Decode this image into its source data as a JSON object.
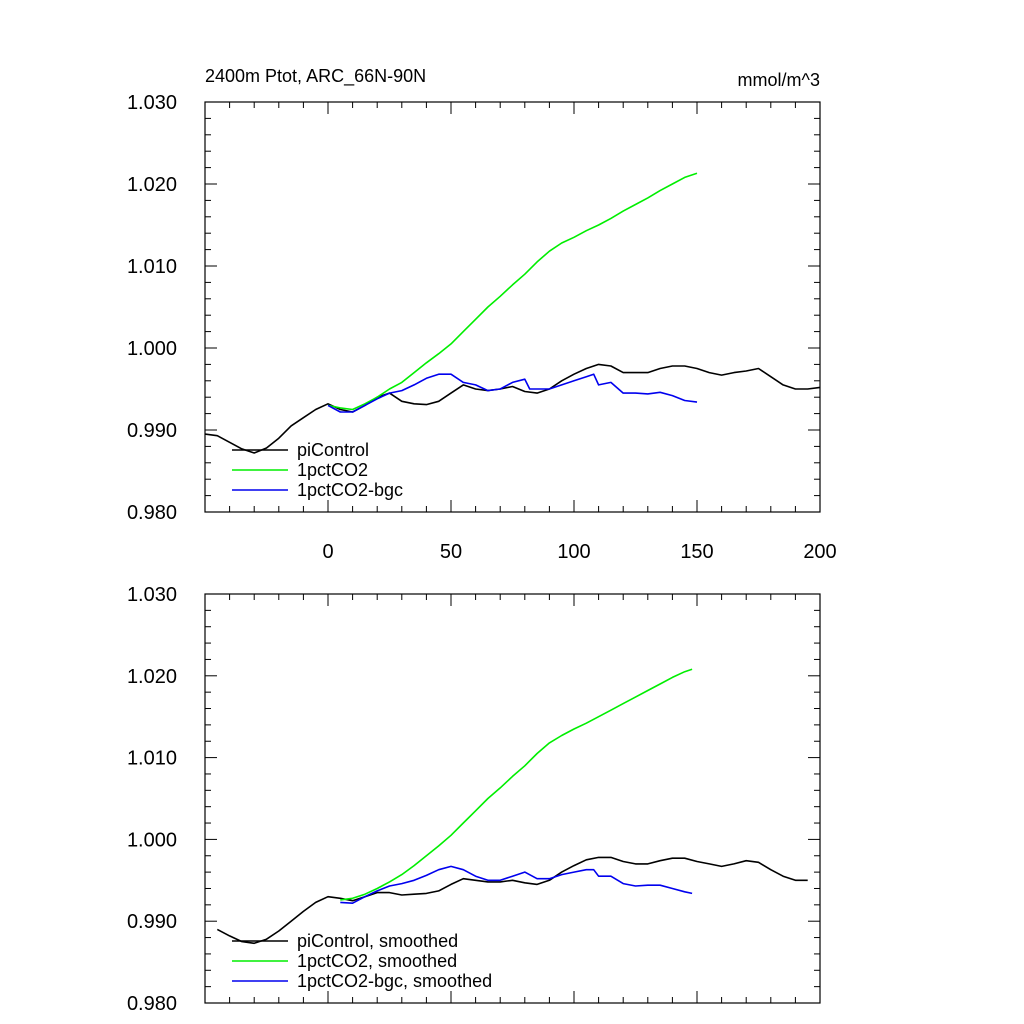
{
  "chart_data": [
    {
      "type": "line",
      "title": "2400m Ptot, ARC_66N-90N",
      "units": "mmol/m^3",
      "xlim": [
        -50,
        200
      ],
      "ylim": [
        0.98,
        1.03
      ],
      "xticks": [
        "0",
        "50",
        "100",
        "150",
        "200"
      ],
      "yticks": [
        "0.980",
        "0.990",
        "1.000",
        "1.010",
        "1.020",
        "1.030"
      ],
      "legend_position": "bottom-left",
      "series": [
        {
          "name": "piControl",
          "color": "#000000",
          "x": [
            -50,
            -45,
            -40,
            -35,
            -30,
            -25,
            -20,
            -15,
            -10,
            -5,
            0,
            5,
            10,
            15,
            20,
            25,
            30,
            35,
            40,
            45,
            50,
            55,
            60,
            65,
            70,
            75,
            80,
            85,
            90,
            95,
            100,
            105,
            110,
            115,
            120,
            125,
            130,
            135,
            140,
            145,
            150,
            155,
            160,
            165,
            170,
            175,
            180,
            185,
            190,
            195,
            200
          ],
          "y": [
            0.9895,
            0.9893,
            0.9885,
            0.9877,
            0.9872,
            0.9878,
            0.989,
            0.9905,
            0.9915,
            0.9925,
            0.9932,
            0.9925,
            0.9922,
            0.993,
            0.994,
            0.9945,
            0.9935,
            0.9932,
            0.9931,
            0.9935,
            0.9945,
            0.9955,
            0.995,
            0.9948,
            0.995,
            0.9953,
            0.9947,
            0.9945,
            0.995,
            0.996,
            0.9968,
            0.9975,
            0.998,
            0.9978,
            0.997,
            0.997,
            0.997,
            0.9975,
            0.9978,
            0.9978,
            0.9975,
            0.997,
            0.9967,
            0.997,
            0.9972,
            0.9975,
            0.9965,
            0.9955,
            0.995,
            0.995,
            0.9952
          ]
        },
        {
          "name": "1pctCO2",
          "color": "#00ee00",
          "x": [
            0,
            5,
            10,
            15,
            20,
            25,
            30,
            35,
            40,
            45,
            50,
            55,
            60,
            65,
            70,
            75,
            80,
            85,
            90,
            95,
            100,
            105,
            110,
            115,
            120,
            125,
            130,
            135,
            140,
            145,
            150
          ],
          "y": [
            0.993,
            0.9927,
            0.9925,
            0.9932,
            0.994,
            0.995,
            0.9958,
            0.997,
            0.9982,
            0.9993,
            1.0005,
            1.002,
            1.0035,
            1.005,
            1.0063,
            1.0077,
            1.009,
            1.0105,
            1.0118,
            1.0128,
            1.0135,
            1.0143,
            1.015,
            1.0158,
            1.0167,
            1.0175,
            1.0183,
            1.0192,
            1.02,
            1.0208,
            1.0213
          ]
        },
        {
          "name": "1pctCO2-bgc",
          "color": "#0000ee",
          "x": [
            0,
            5,
            10,
            15,
            20,
            25,
            30,
            35,
            40,
            45,
            50,
            55,
            60,
            65,
            70,
            75,
            80,
            82,
            85,
            90,
            95,
            100,
            105,
            108,
            110,
            115,
            120,
            125,
            130,
            135,
            140,
            145,
            150
          ],
          "y": [
            0.993,
            0.9922,
            0.9922,
            0.993,
            0.9938,
            0.9945,
            0.9948,
            0.9955,
            0.9963,
            0.9968,
            0.9968,
            0.9958,
            0.9955,
            0.9948,
            0.995,
            0.9958,
            0.9962,
            0.995,
            0.995,
            0.995,
            0.9955,
            0.996,
            0.9965,
            0.9968,
            0.9955,
            0.9958,
            0.9945,
            0.9945,
            0.9944,
            0.9946,
            0.9942,
            0.9936,
            0.9934
          ]
        }
      ]
    },
    {
      "type": "line",
      "title": "",
      "xlim": [
        -50,
        200
      ],
      "ylim": [
        0.98,
        1.03
      ],
      "yticks": [
        "0.980",
        "0.990",
        "1.000",
        "1.010",
        "1.020",
        "1.030"
      ],
      "legend_position": "bottom-left",
      "series": [
        {
          "name": "piControl, smoothed",
          "color": "#000000",
          "x": [
            -45,
            -40,
            -35,
            -30,
            -25,
            -20,
            -15,
            -10,
            -5,
            0,
            5,
            10,
            15,
            20,
            25,
            30,
            35,
            40,
            45,
            50,
            55,
            60,
            65,
            70,
            75,
            80,
            85,
            90,
            95,
            100,
            105,
            110,
            115,
            120,
            125,
            130,
            135,
            140,
            145,
            150,
            155,
            160,
            165,
            170,
            175,
            180,
            185,
            190,
            195
          ],
          "y": [
            0.989,
            0.9882,
            0.9875,
            0.9873,
            0.9878,
            0.9888,
            0.99,
            0.9912,
            0.9923,
            0.993,
            0.9928,
            0.9925,
            0.993,
            0.9935,
            0.9935,
            0.9932,
            0.9933,
            0.9934,
            0.9937,
            0.9945,
            0.9952,
            0.995,
            0.9948,
            0.9948,
            0.995,
            0.9947,
            0.9945,
            0.995,
            0.996,
            0.9968,
            0.9975,
            0.9978,
            0.9978,
            0.9973,
            0.997,
            0.997,
            0.9974,
            0.9977,
            0.9977,
            0.9973,
            0.997,
            0.9967,
            0.997,
            0.9974,
            0.9972,
            0.9963,
            0.9955,
            0.995,
            0.995
          ]
        },
        {
          "name": "1pctCO2, smoothed",
          "color": "#00ee00",
          "x": [
            5,
            10,
            15,
            20,
            25,
            30,
            35,
            40,
            45,
            50,
            55,
            60,
            65,
            70,
            75,
            80,
            85,
            90,
            95,
            100,
            105,
            110,
            115,
            120,
            125,
            130,
            135,
            140,
            145,
            148
          ],
          "y": [
            0.9926,
            0.9928,
            0.9933,
            0.994,
            0.9948,
            0.9957,
            0.9968,
            0.998,
            0.9992,
            1.0005,
            1.002,
            1.0035,
            1.005,
            1.0063,
            1.0077,
            1.009,
            1.0105,
            1.0118,
            1.0127,
            1.0135,
            1.0142,
            1.015,
            1.0158,
            1.0166,
            1.0174,
            1.0182,
            1.019,
            1.0198,
            1.0205,
            1.0208
          ]
        },
        {
          "name": "1pctCO2-bgc, smoothed",
          "color": "#0000ee",
          "x": [
            5,
            10,
            15,
            20,
            25,
            30,
            35,
            40,
            45,
            50,
            55,
            60,
            65,
            70,
            75,
            80,
            85,
            90,
            95,
            100,
            105,
            108,
            110,
            115,
            120,
            125,
            130,
            135,
            140,
            145,
            148
          ],
          "y": [
            0.9923,
            0.9922,
            0.993,
            0.9937,
            0.9943,
            0.9946,
            0.995,
            0.9956,
            0.9963,
            0.9967,
            0.9963,
            0.9955,
            0.995,
            0.995,
            0.9955,
            0.996,
            0.9952,
            0.9952,
            0.9957,
            0.996,
            0.9963,
            0.9963,
            0.9955,
            0.9955,
            0.9946,
            0.9943,
            0.9944,
            0.9944,
            0.994,
            0.9936,
            0.9934
          ]
        }
      ]
    }
  ]
}
